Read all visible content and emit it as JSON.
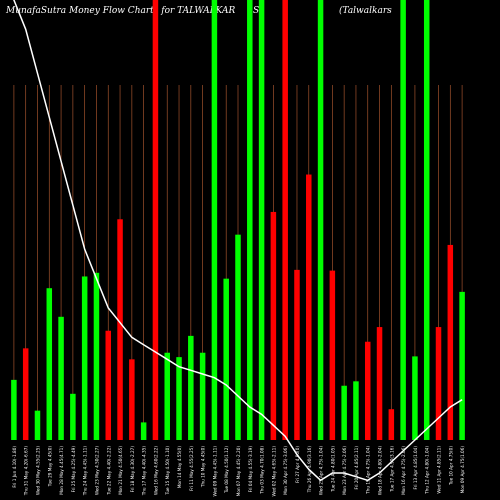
{
  "chart_title": {
    "site": "MunafaSutra",
    "main": "Money Flow  Charts for TALWALKAR",
    "symbol": "S",
    "company": "(Talwalkars"
  },
  "chart_data": {
    "type": "bar",
    "title": "MunafaSutra  Money Flow  Charts for TALWALKAR S (Talwalkars",
    "colors": {
      "up": "#00ff00",
      "down": "#ff0000",
      "grid": "#a0522d",
      "line": "#ffffff",
      "background": "#000000"
    },
    "categories": [
      "Fri 1 Jun 4.10(-1.80)",
      "Thu 31 May 4.20(-6.67)",
      "Wed 30 May 4.55(2.25)",
      "Tue 29 May 4.45(0)",
      "Mon 28 May 4.45(4.71)",
      "Fri 25 May 4.25(-4.49)",
      "Thu 24 May 4.45(-1.11)",
      "Wed 23 May 4.50(2.27)",
      "Tue 22 May 4.40(-2.22)",
      "Mon 21 May 4.50(4.65)",
      "Fri 18 May 4.30(-2.27)",
      "Thu 17 May 4.40(-4.35)",
      "Wed 16 May 4.60(2.22)",
      "Tue 15 May 4.50(-1.10)",
      "Mon 14 May 4.55(0)",
      "Fri 11 May 4.55(2.25)",
      "Thu 10 May 4.45(0)",
      "Wed 09 May 4.45(-1.11)",
      "Tue 08 May 4.50(1.12)",
      "Mon 07 May 4.45(-2.20)",
      "Fri 04 May 4.55(-3.19)",
      "Thu 03 May 4.70(1.08)",
      "Wed 02 May 4.65(-2.11)",
      "Mon 30 Apr 4.75(-3.06)",
      "Fri 27 Apr 4.90(0)",
      "Thu 26 Apr 4.90(3.16)",
      "Wed 25 Apr 4.75(-1.04)",
      "Tue 24 Apr 4.80(1.05)",
      "Mon 23 Apr 4.75(-2.06)",
      "Fri 20 Apr 4.85(2.11)",
      "Thu 19 Apr 4.75(-1.04)",
      "Wed 18 Apr 4.80(-2.04)",
      "Tue 17 Apr 4.90(3.16)",
      "Mon 16 Apr 4.75(-2.06)",
      "Fri 13 Apr 4.85(1.04)",
      "Thu 12 Apr 4.80(-1.04)",
      "Wed 11 Apr 4.85(2.11)",
      "Tue 10 Apr 4.75(0)",
      "Mon 09 Apr 4.75(1.06)"
    ],
    "bar_direction": [
      "up",
      "down",
      "up",
      "up",
      "up",
      "up",
      "up",
      "up",
      "down",
      "down",
      "down",
      "up",
      "down",
      "up",
      "up",
      "up",
      "up",
      "up",
      "up",
      "up",
      "up",
      "up",
      "down",
      "down",
      "down",
      "down",
      "up",
      "down",
      "up",
      "up",
      "down",
      "down",
      "down",
      "up",
      "up",
      "up",
      "down",
      "down",
      "up"
    ],
    "values": [
      82,
      125,
      40,
      207,
      168,
      63,
      223,
      228,
      149,
      301,
      110,
      24,
      600,
      119,
      113,
      142,
      119,
      600,
      220,
      280,
      600,
      600,
      311,
      600,
      232,
      362,
      600,
      231,
      74,
      80,
      134,
      154,
      42,
      600,
      114,
      600,
      154,
      266,
      202
    ],
    "line_overlay": [
      600,
      560,
      500,
      440,
      380,
      320,
      260,
      220,
      180,
      160,
      140,
      130,
      120,
      110,
      100,
      95,
      90,
      85,
      75,
      60,
      45,
      35,
      20,
      5,
      -20,
      -40,
      -55,
      -45,
      -45,
      -50,
      -55,
      -45,
      -30,
      -15,
      0,
      15,
      30,
      45,
      55
    ],
    "ylim": [
      0,
      600
    ],
    "grid": true
  }
}
